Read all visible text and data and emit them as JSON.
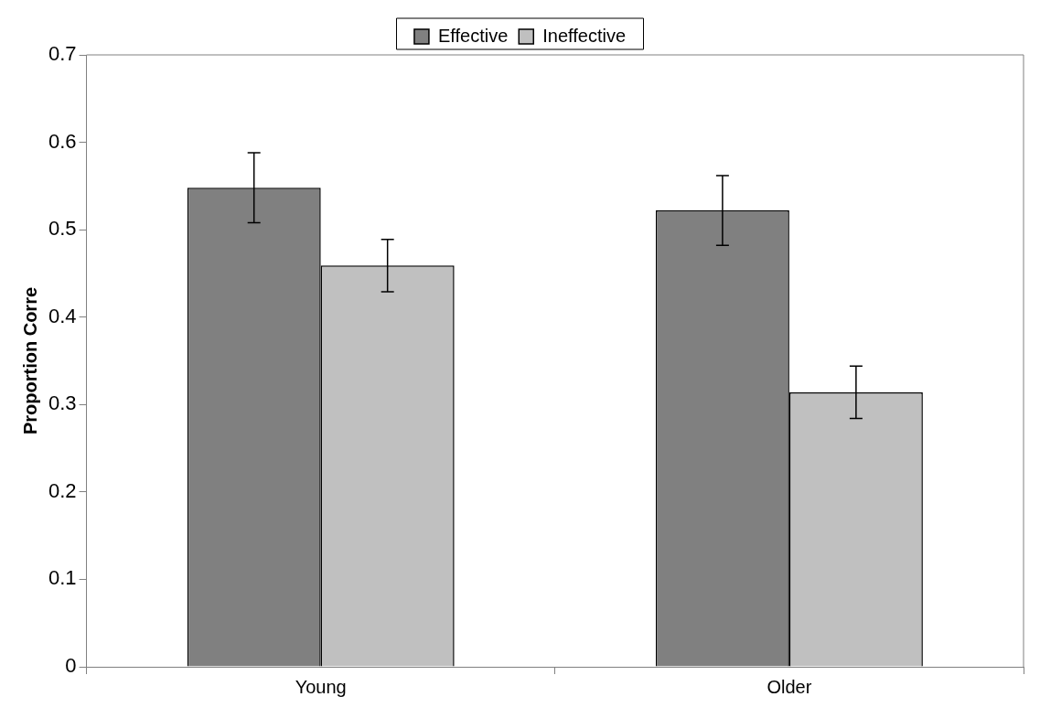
{
  "chart_data": {
    "type": "bar",
    "ylabel": "Proportion Corre",
    "categories": [
      "Young",
      "Older"
    ],
    "series": [
      {
        "name": "Effective",
        "color": "#808080",
        "values": [
          0.548,
          0.522
        ],
        "errors": [
          0.04,
          0.04
        ]
      },
      {
        "name": "Ineffective",
        "color": "#c0c0c0",
        "values": [
          0.459,
          0.314
        ],
        "errors": [
          0.03,
          0.03
        ]
      }
    ],
    "ylim": [
      0,
      0.7
    ],
    "yticks": [
      0,
      0.1,
      0.2,
      0.3,
      0.4,
      0.5,
      0.6,
      0.7
    ],
    "grid": false,
    "legend": "top"
  }
}
